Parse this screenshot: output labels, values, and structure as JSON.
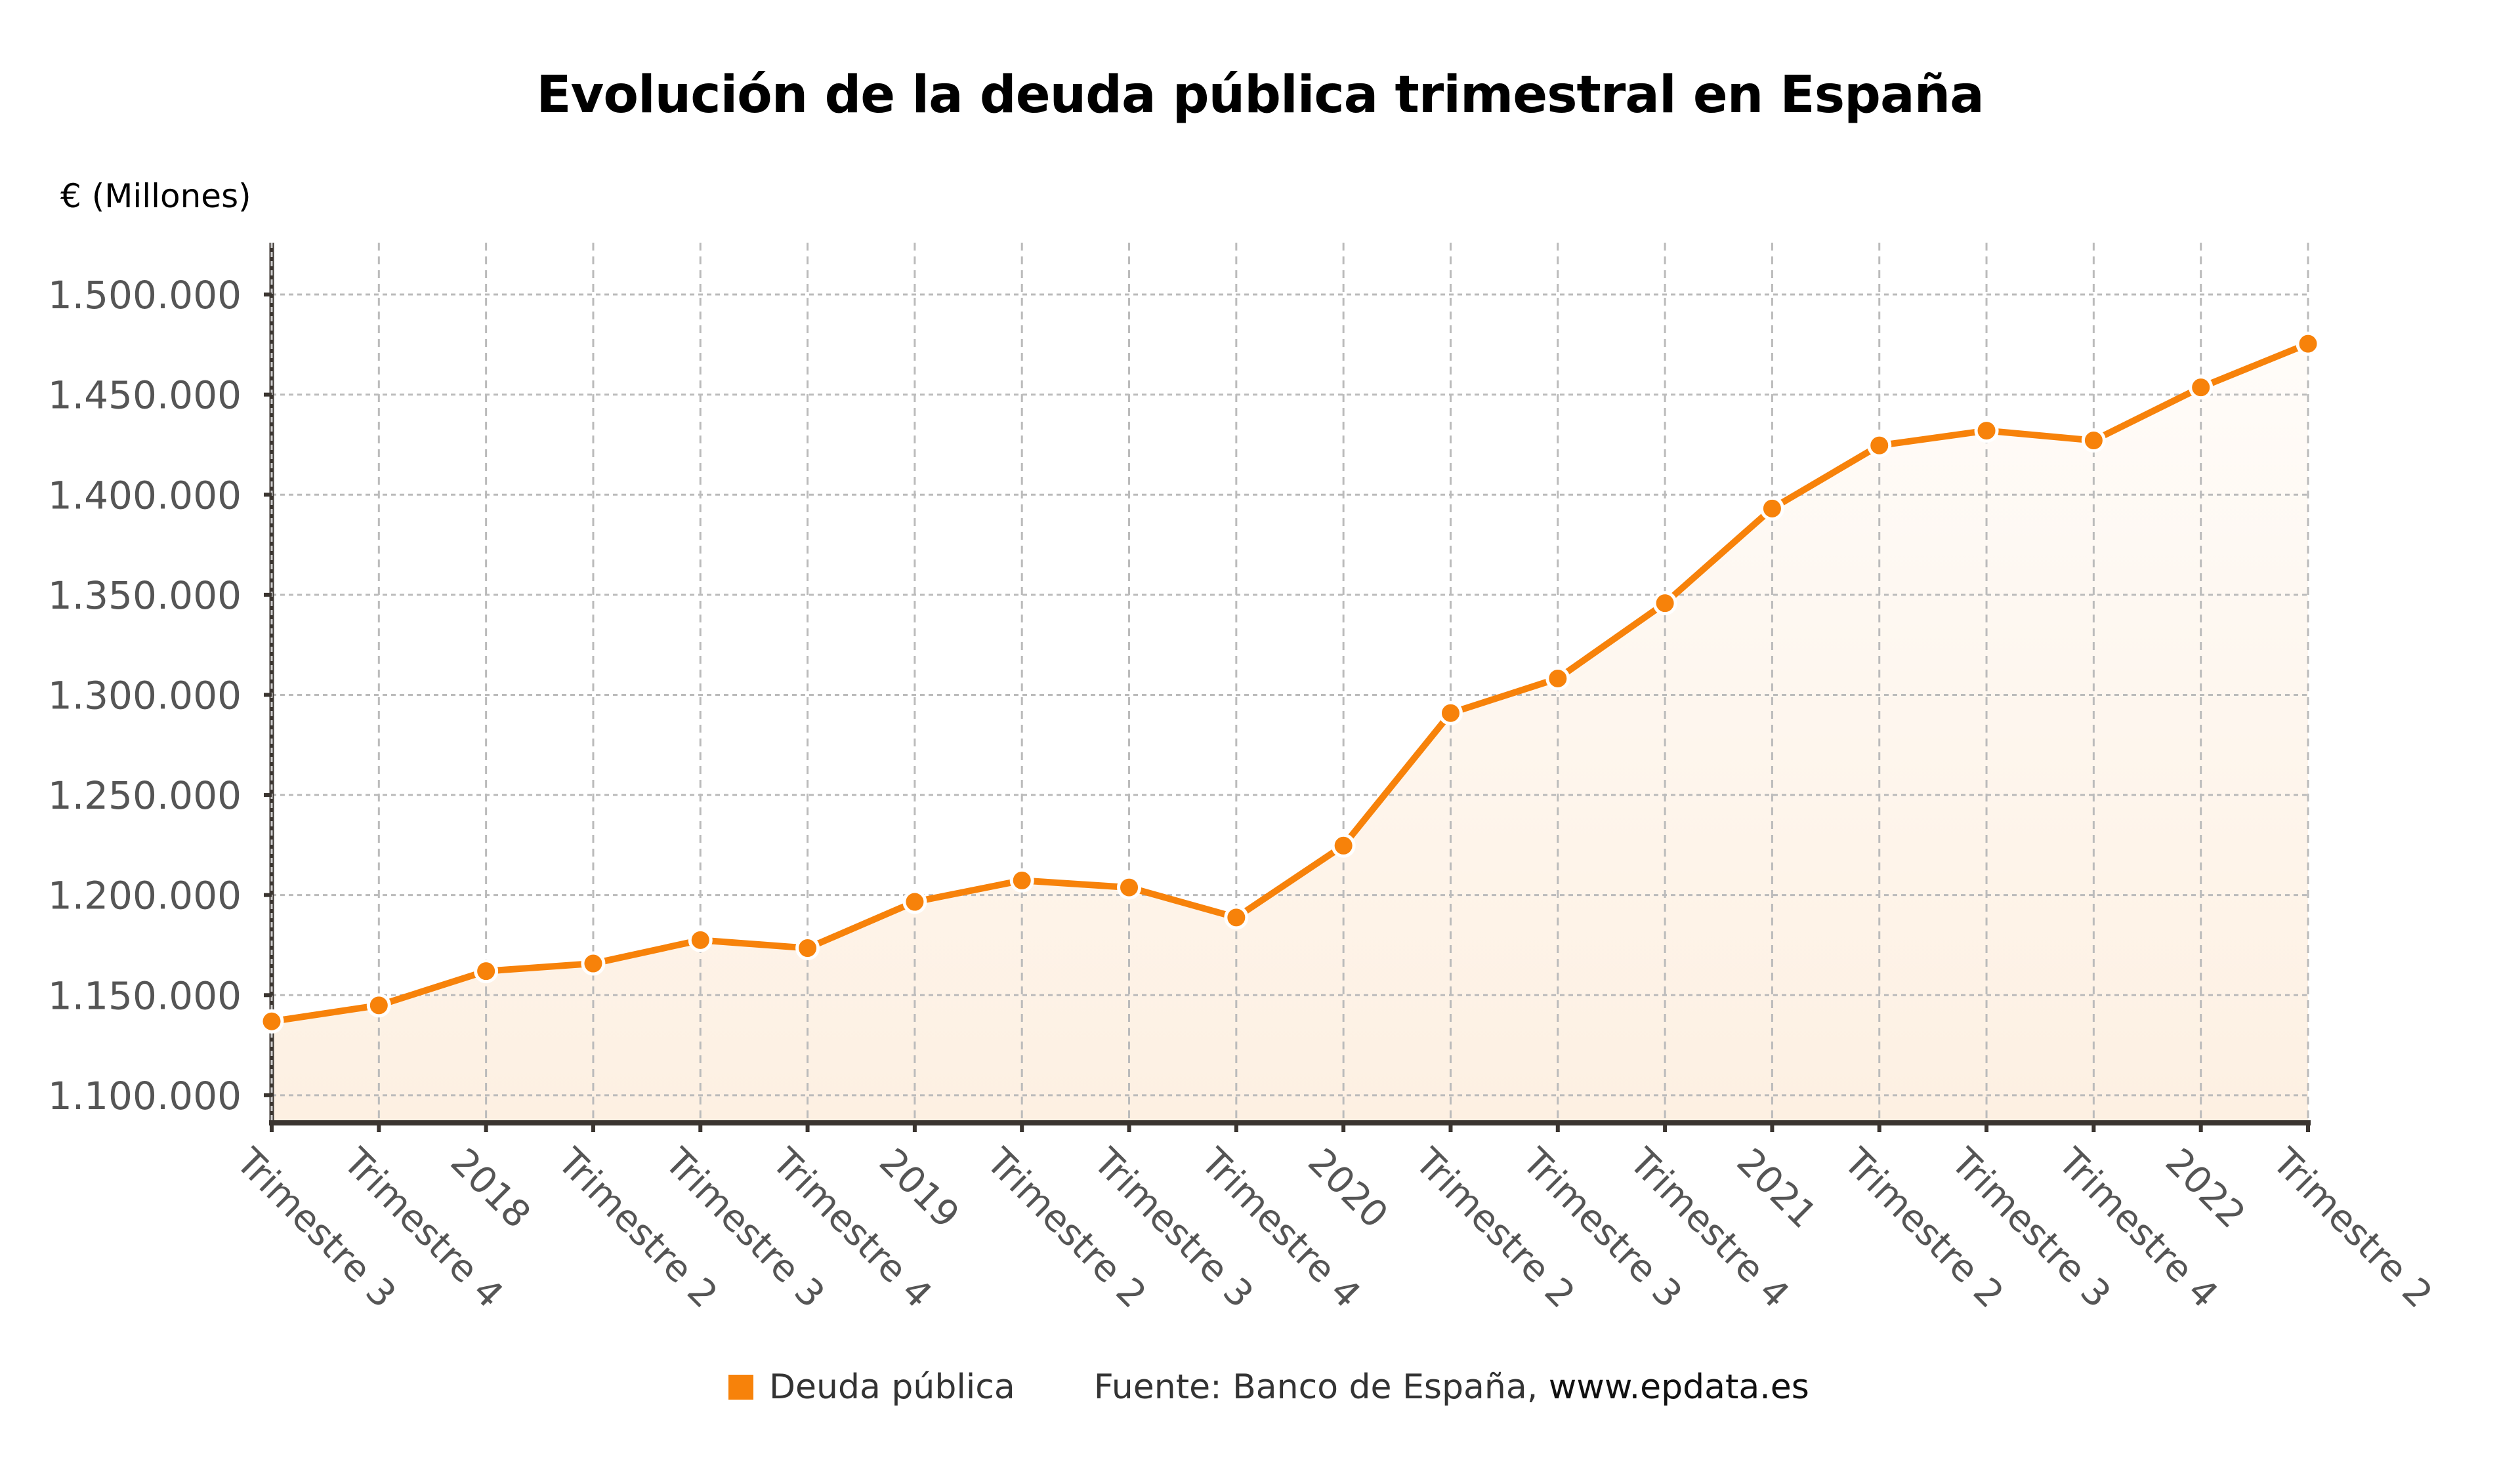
{
  "title": "Evolución de la deuda pública trimestral en España",
  "y_unit_label": "€ (Millones)",
  "legend": {
    "series_label": "Deuda pública",
    "source_prefix": "Fuente: Banco de España, ",
    "source_link": "www.epdata.es"
  },
  "colors": {
    "line": "#F7820A",
    "fill_top": "#FFFCF9",
    "fill_bottom": "#FDF0E2",
    "grid": "#BBBBBB",
    "axis": "#3B3530"
  },
  "chart_data": {
    "type": "area",
    "title": "Evolución de la deuda pública trimestral en España",
    "xlabel": "",
    "ylabel": "€ (Millones)",
    "categories": [
      "Trimestre 3",
      "Trimestre 4",
      "2018",
      "Trimestre 2",
      "Trimestre 3",
      "Trimestre 4",
      "2019",
      "Trimestre 2",
      "Trimestre 3",
      "Trimestre 4",
      "2020",
      "Trimestre 2",
      "Trimestre 3",
      "Trimestre 4",
      "2021",
      "Trimestre 2",
      "Trimestre 3",
      "Trimestre 4",
      "2022",
      "Trimestre 2"
    ],
    "series": [
      {
        "name": "Deuda pública",
        "values": [
          1136900,
          1144900,
          1162000,
          1165800,
          1177500,
          1173500,
          1196600,
          1207300,
          1203800,
          1188800,
          1224700,
          1290900,
          1308200,
          1345800,
          1393100,
          1424600,
          1432000,
          1427100,
          1453600,
          1475400
        ]
      }
    ],
    "yticks": [
      1100000,
      1150000,
      1200000,
      1250000,
      1300000,
      1350000,
      1400000,
      1450000,
      1500000
    ],
    "ytick_labels": [
      "1.100.000",
      "1.150.000",
      "1.200.000",
      "1.250.000",
      "1.300.000",
      "1.350.000",
      "1.400.000",
      "1.450.000",
      "1.500.000"
    ],
    "ylim": [
      1086200,
      1525900
    ],
    "grid": true,
    "legend_position": "bottom",
    "markers": true
  }
}
